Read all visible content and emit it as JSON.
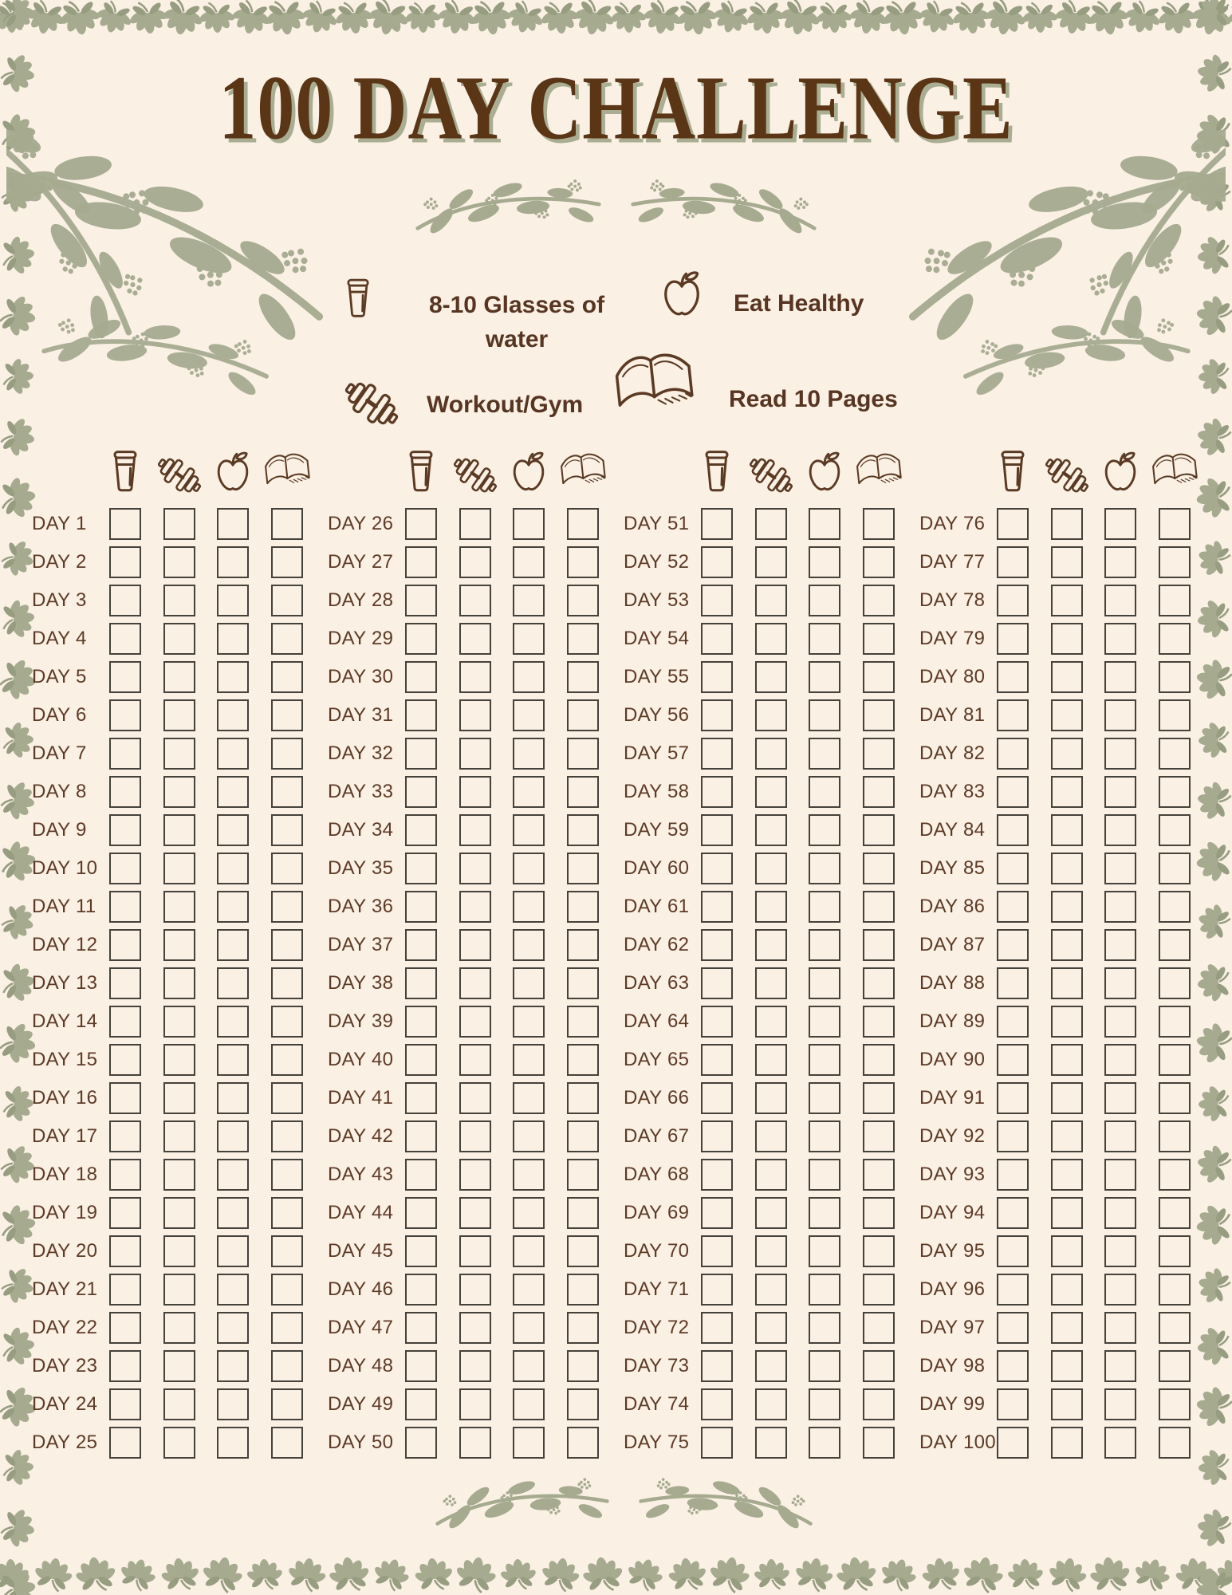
{
  "page": {
    "title": "100 DAY CHALLENGE"
  },
  "legend": {
    "items": [
      {
        "icon": "water-glass-icon",
        "label": "8-10 Glasses of water"
      },
      {
        "icon": "apple-icon",
        "label": "Eat Healthy"
      },
      {
        "icon": "dumbbell-icon",
        "label": "Workout/Gym"
      },
      {
        "icon": "open-book-icon",
        "label": "Read 10 Pages"
      }
    ]
  },
  "tracker": {
    "column_icons": [
      "water-glass",
      "dumbbell",
      "apple",
      "open-book"
    ],
    "checkbox_state": "unchecked",
    "groups": [
      {
        "days": [
          "DAY 1",
          "DAY 2",
          "DAY 3",
          "DAY 4",
          "DAY 5",
          "DAY 6",
          "DAY 7",
          "DAY 8",
          "DAY 9",
          "DAY 10",
          "DAY 11",
          "DAY 12",
          "DAY 13",
          "DAY 14",
          "DAY 15",
          "DAY 16",
          "DAY 17",
          "DAY 18",
          "DAY 19",
          "DAY 20",
          "DAY 21",
          "DAY 22",
          "DAY 23",
          "DAY 24",
          "DAY 25"
        ]
      },
      {
        "days": [
          "DAY 26",
          "DAY 27",
          "DAY 28",
          "DAY 29",
          "DAY 30",
          "DAY 31",
          "DAY 32",
          "DAY 33",
          "DAY 34",
          "DAY 35",
          "DAY 36",
          "DAY 37",
          "DAY 38",
          "DAY 39",
          "DAY 40",
          "DAY 41",
          "DAY 42",
          "DAY 43",
          "DAY 44",
          "DAY 45",
          "DAY 46",
          "DAY 47",
          "DAY 48",
          "DAY 49",
          "DAY 50"
        ]
      },
      {
        "days": [
          "DAY 51",
          "DAY 52",
          "DAY 53",
          "DAY 54",
          "DAY 55",
          "DAY 56",
          "DAY 57",
          "DAY 58",
          "DAY 59",
          "DAY 60",
          "DAY 61",
          "DAY 62",
          "DAY 63",
          "DAY 64",
          "DAY 65",
          "DAY 66",
          "DAY 67",
          "DAY 68",
          "DAY 69",
          "DAY 70",
          "DAY 71",
          "DAY 72",
          "DAY 73",
          "DAY 74",
          "DAY 75"
        ]
      },
      {
        "days": [
          "DAY 76",
          "DAY 77",
          "DAY 78",
          "DAY 79",
          "DAY 80",
          "DAY 81",
          "DAY 82",
          "DAY 83",
          "DAY 84",
          "DAY 85",
          "DAY 86",
          "DAY 87",
          "DAY 88",
          "DAY 89",
          "DAY 90",
          "DAY 91",
          "DAY 92",
          "DAY 93",
          "DAY 94",
          "DAY 95",
          "DAY 96",
          "DAY 97",
          "DAY 98",
          "DAY 99",
          "DAY 100"
        ]
      }
    ]
  },
  "colors": {
    "background": "#faf0e4",
    "sage_green": "#a6ab90",
    "sage_dark": "#979d80",
    "title_brown": "#5a3516",
    "text_brown": "#5e3a26",
    "checkbox_border": "#45423b"
  }
}
